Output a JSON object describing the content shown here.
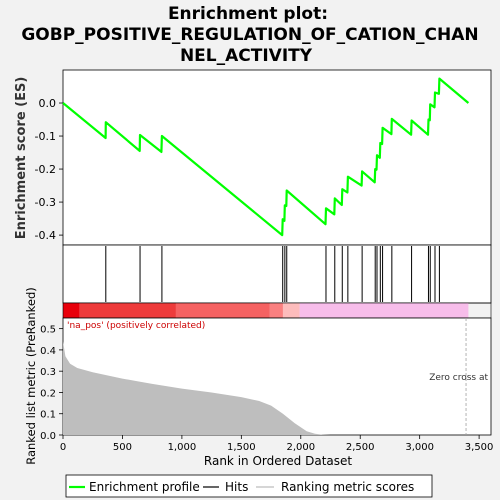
{
  "title_line1": "Enrichment plot:",
  "title_line2": "GOBP_POSITIVE_REGULATION_OF_CATION_CHAN",
  "title_line3": "NEL_ACTIVITY",
  "colors": {
    "es_line": "#00ff00",
    "hits": "#000000",
    "metric_fill": "#bebebe",
    "zero_cross": "#a0a0a0",
    "pos_label": "#cc0000"
  },
  "chart_data": [
    {
      "type": "line",
      "name": "enrichment-profile",
      "ylabel": "Enrichment score (ES)",
      "xlim": [
        0,
        3600
      ],
      "ylim": [
        -0.43,
        0.1
      ],
      "yticks": [
        0.0,
        -0.1,
        -0.2,
        -0.3,
        -0.4
      ],
      "ytick_labels": [
        "0.0",
        "-0.1",
        "-0.2",
        "-0.3",
        "-0.4"
      ],
      "x": [
        0,
        358,
        360,
        645,
        648,
        828,
        832,
        1844,
        1848,
        1862,
        1866,
        1878,
        1882,
        2208,
        2212,
        2282,
        2286,
        2345,
        2349,
        2392,
        2396,
        2512,
        2516,
        2622,
        2626,
        2637,
        2641,
        2665,
        2669,
        2684,
        2688,
        2762,
        2766,
        2928,
        2932,
        3070,
        3074,
        3085,
        3089,
        3125,
        3129,
        3162,
        3166,
        3410
      ],
      "y": [
        0.0,
        -0.106,
        -0.058,
        -0.145,
        -0.097,
        -0.148,
        -0.1,
        -0.4,
        -0.352,
        -0.357,
        -0.31,
        -0.312,
        -0.265,
        -0.367,
        -0.319,
        -0.337,
        -0.289,
        -0.309,
        -0.261,
        -0.271,
        -0.223,
        -0.25,
        -0.207,
        -0.24,
        -0.2,
        -0.202,
        -0.158,
        -0.166,
        -0.121,
        -0.124,
        -0.075,
        -0.094,
        -0.048,
        -0.096,
        -0.053,
        -0.096,
        -0.05,
        -0.052,
        -0.004,
        -0.013,
        0.032,
        0.028,
        0.074,
        0.0
      ]
    },
    {
      "type": "scatter",
      "name": "hits",
      "x": [
        360,
        648,
        832,
        1848,
        1866,
        1882,
        2212,
        2286,
        2349,
        2396,
        2516,
        2626,
        2641,
        2669,
        2688,
        2766,
        2932,
        3074,
        3089,
        3129,
        3166
      ]
    },
    {
      "type": "heatmap",
      "name": "ranked-list-colorbar",
      "segments": [
        {
          "x0": 0,
          "x1": 140,
          "color": "#e8000b"
        },
        {
          "x0": 140,
          "x1": 950,
          "color": "#ee3b3b"
        },
        {
          "x0": 950,
          "x1": 1740,
          "color": "#f56262"
        },
        {
          "x0": 1740,
          "x1": 1850,
          "color": "#fa8080"
        },
        {
          "x0": 1850,
          "x1": 1990,
          "color": "#fdbcbc"
        },
        {
          "x0": 1990,
          "x1": 3410,
          "color": "#f7bdea"
        }
      ]
    },
    {
      "type": "area",
      "name": "ranked-metric",
      "xlabel": "Rank in Ordered Dataset",
      "ylabel": "Ranked list metric (PreRanked)",
      "xlim": [
        0,
        3600
      ],
      "ylim": [
        0,
        0.55
      ],
      "xticks": [
        0,
        500,
        1000,
        1500,
        2000,
        2500,
        3000,
        3500
      ],
      "xtick_labels": [
        "0",
        "500",
        "1,000",
        "1,500",
        "2,000",
        "2,500",
        "3,000",
        "3,500"
      ],
      "yticks": [
        0.0,
        0.1,
        0.2,
        0.3,
        0.4,
        0.5
      ],
      "ytick_labels": [
        "0.0",
        "0.1",
        "0.2",
        "0.3",
        "0.4",
        "0.5"
      ],
      "x": [
        0,
        20,
        60,
        120,
        250,
        500,
        750,
        1000,
        1250,
        1500,
        1650,
        1750,
        1850,
        1950,
        2050,
        2120,
        2180,
        2250,
        2400,
        3410
      ],
      "y": [
        0.44,
        0.37,
        0.335,
        0.315,
        0.295,
        0.265,
        0.24,
        0.218,
        0.2,
        0.178,
        0.16,
        0.138,
        0.1,
        0.055,
        0.018,
        0.006,
        0.002,
        0.0,
        0.0,
        0.0
      ],
      "pos_label": "'na_pos' (positively correlated)",
      "zero_cross_label": "Zero cross at",
      "zero_cross_x": 3390
    }
  ],
  "legend": {
    "items": [
      {
        "label": "Enrichment profile"
      },
      {
        "label": "Hits"
      },
      {
        "label": "Ranking metric scores"
      }
    ]
  }
}
